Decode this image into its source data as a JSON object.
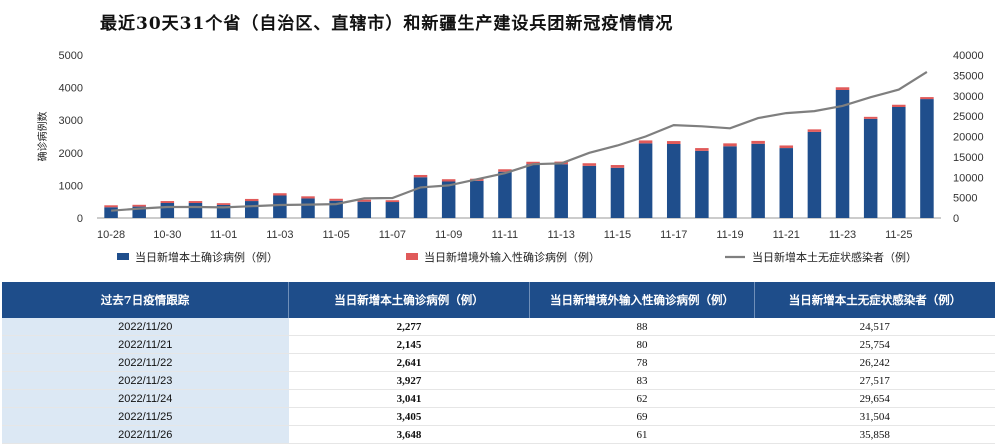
{
  "title": "最近30天31个省（自治区、直辖市）和新疆生产建设兵团新冠疫情情况",
  "chart_data": {
    "type": "bar",
    "title": "最近30天31个省（自治区、直辖市）和新疆生产建设兵团新冠疫情情况",
    "ylabel": "确诊病例数",
    "ylim": [
      0,
      5000
    ],
    "y2lim": [
      0,
      40000
    ],
    "yticks": [
      "0",
      "1000",
      "2000",
      "3000",
      "4000",
      "5000"
    ],
    "y2ticks": [
      "0",
      "5000",
      "10000",
      "15000",
      "20000",
      "25000",
      "30000",
      "35000",
      "40000"
    ],
    "x_tick_labels": [
      "10-28",
      "10-30",
      "11-01",
      "11-03",
      "11-05",
      "11-07",
      "11-09",
      "11-11",
      "11-13",
      "11-15",
      "11-17",
      "11-19",
      "11-21",
      "11-23",
      "11-25"
    ],
    "categories": [
      "10-28",
      "10-29",
      "10-30",
      "10-31",
      "11-01",
      "11-02",
      "11-03",
      "11-04",
      "11-05",
      "11-06",
      "11-07",
      "11-08",
      "11-09",
      "11-10",
      "11-11",
      "11-12",
      "11-13",
      "11-14",
      "11-15",
      "11-16",
      "11-17",
      "11-18",
      "11-19",
      "11-20",
      "11-21",
      "11-22",
      "11-23",
      "11-24",
      "11-25",
      "11-26"
    ],
    "legend_position": "bottom",
    "series": [
      {
        "name": "当日新增本土确诊病例（例）",
        "type": "bar",
        "axis": "left",
        "color": "#1f4e8c",
        "values": [
          330,
          350,
          460,
          460,
          400,
          520,
          690,
          600,
          530,
          500,
          490,
          1250,
          1120,
          1140,
          1420,
          1650,
          1650,
          1600,
          1540,
          2290,
          2270,
          2060,
          2200,
          2277,
          2145,
          2641,
          3927,
          3041,
          3405,
          3648
        ]
      },
      {
        "name": "当日新增境外输入性确诊病例（例）",
        "type": "bar",
        "axis": "left",
        "stacked": true,
        "color": "#e05a5a",
        "values": [
          60,
          55,
          60,
          60,
          55,
          65,
          70,
          65,
          60,
          60,
          55,
          70,
          70,
          65,
          75,
          75,
          80,
          80,
          85,
          90,
          90,
          85,
          90,
          88,
          80,
          78,
          83,
          62,
          69,
          61
        ]
      },
      {
        "name": "当日新增本土无症状感染者（例）",
        "type": "line",
        "axis": "right",
        "color": "#7f7f7f",
        "values": [
          1800,
          2300,
          2700,
          2700,
          2600,
          2900,
          3200,
          3300,
          3400,
          4800,
          4900,
          7500,
          8000,
          9500,
          11000,
          13200,
          13400,
          16000,
          17800,
          20000,
          22800,
          22500,
          22000,
          24517,
          25754,
          26242,
          27517,
          29654,
          31504,
          35858
        ]
      }
    ]
  },
  "legend": {
    "items": [
      "当日新增本土确诊病例（例）",
      "当日新增境外输入性确诊病例（例）",
      "当日新增本土无症状感染者（例）"
    ]
  },
  "table": {
    "headers": [
      "过去7日疫情跟踪",
      "当日新增本土确诊病例（例）",
      "当日新增境外输入性确诊病例（例）",
      "当日新增本土无症状感染者（例）"
    ],
    "rows": [
      [
        "2022/11/20",
        "2,277",
        "88",
        "24,517"
      ],
      [
        "2022/11/21",
        "2,145",
        "80",
        "25,754"
      ],
      [
        "2022/11/22",
        "2,641",
        "78",
        "26,242"
      ],
      [
        "2022/11/23",
        "3,927",
        "83",
        "27,517"
      ],
      [
        "2022/11/24",
        "3,041",
        "62",
        "29,654"
      ],
      [
        "2022/11/25",
        "3,405",
        "69",
        "31,504"
      ],
      [
        "2022/11/26",
        "3,648",
        "61",
        "35,858"
      ]
    ]
  }
}
